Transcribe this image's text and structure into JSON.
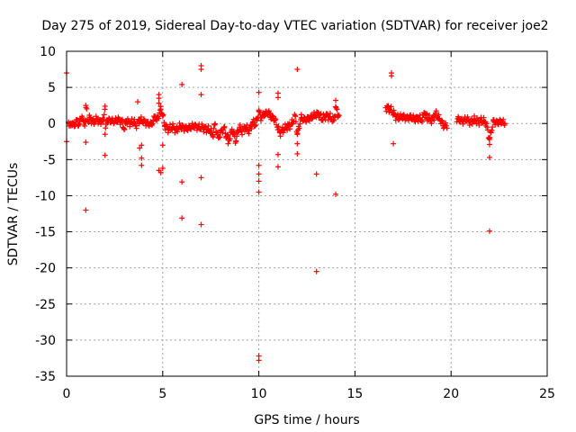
{
  "chart_data": {
    "type": "scatter",
    "title": "Day 275 of 2019, Sidereal Day-to-day VTEC variation (SDTVAR) for receiver joe2",
    "xlabel": "GPS time / hours",
    "ylabel": "SDTVAR / TECUs",
    "xlim": [
      0,
      25
    ],
    "ylim": [
      -35,
      10
    ],
    "xticks": [
      0,
      5,
      10,
      15,
      20,
      25
    ],
    "yticks": [
      10,
      5,
      0,
      -5,
      -10,
      -15,
      -20,
      -25,
      -30,
      -35
    ],
    "xtick_labels": [
      "0",
      "5",
      "10",
      "15",
      "20",
      "25"
    ],
    "ytick_labels": [
      "10",
      "5",
      "0",
      "-5",
      "-10",
      "-15",
      "-20",
      "-25",
      "-30",
      "-35"
    ],
    "grid": true,
    "marker": "plus",
    "color": "#ff0000",
    "series": [
      {
        "name": "joe2",
        "points": [
          [
            0.0,
            7.0
          ],
          [
            0.0,
            -2.5
          ],
          [
            0.1,
            0.2
          ],
          [
            0.2,
            -0.3
          ],
          [
            0.3,
            0.1
          ],
          [
            0.4,
            -0.4
          ],
          [
            0.5,
            0.5
          ],
          [
            0.6,
            -0.2
          ],
          [
            0.7,
            0.3
          ],
          [
            0.8,
            1.0
          ],
          [
            0.9,
            -0.1
          ],
          [
            1.0,
            0.4
          ],
          [
            1.0,
            2.5
          ],
          [
            1.0,
            -2.6
          ],
          [
            1.0,
            -12.0
          ],
          [
            1.1,
            0.3
          ],
          [
            1.2,
            0.8
          ],
          [
            1.3,
            0.5
          ],
          [
            1.4,
            0.2
          ],
          [
            1.5,
            0.4
          ],
          [
            1.6,
            0.6
          ],
          [
            1.7,
            0.2
          ],
          [
            1.8,
            0.4
          ],
          [
            1.9,
            0.3
          ],
          [
            2.0,
            2.4
          ],
          [
            2.0,
            -1.5
          ],
          [
            2.0,
            -4.4
          ],
          [
            2.1,
            0.5
          ],
          [
            2.3,
            0.4
          ],
          [
            2.5,
            0.3
          ],
          [
            2.7,
            0.5
          ],
          [
            2.9,
            0.2
          ],
          [
            3.0,
            -0.8
          ],
          [
            3.1,
            0.4
          ],
          [
            3.3,
            0.1
          ],
          [
            3.5,
            0.2
          ],
          [
            3.6,
            -0.3
          ],
          [
            3.7,
            3.0
          ],
          [
            3.8,
            0.5
          ],
          [
            3.8,
            -3.4
          ],
          [
            3.9,
            -3.0
          ],
          [
            3.9,
            -4.8
          ],
          [
            3.9,
            -5.8
          ],
          [
            4.0,
            0.3
          ],
          [
            4.2,
            0.0
          ],
          [
            4.4,
            -0.1
          ],
          [
            4.5,
            0.3
          ],
          [
            4.6,
            1.0
          ],
          [
            4.7,
            0.5
          ],
          [
            4.8,
            4.0
          ],
          [
            4.8,
            3.5
          ],
          [
            4.8,
            2.8
          ],
          [
            4.8,
            -6.5
          ],
          [
            4.9,
            2.0
          ],
          [
            4.9,
            -6.8
          ],
          [
            5.0,
            1.2
          ],
          [
            5.0,
            -6.2
          ],
          [
            5.0,
            -3.0
          ],
          [
            5.1,
            -0.3
          ],
          [
            5.3,
            -0.8
          ],
          [
            5.5,
            -0.5
          ],
          [
            5.7,
            -0.9
          ],
          [
            5.9,
            -0.4
          ],
          [
            6.0,
            5.4
          ],
          [
            6.0,
            -8.1
          ],
          [
            6.0,
            -13.1
          ],
          [
            6.2,
            -0.7
          ],
          [
            6.4,
            -0.6
          ],
          [
            6.6,
            -0.3
          ],
          [
            6.8,
            -0.5
          ],
          [
            7.0,
            8.0
          ],
          [
            7.0,
            7.5
          ],
          [
            7.0,
            4.0
          ],
          [
            7.0,
            -7.5
          ],
          [
            7.0,
            -14.0
          ],
          [
            7.1,
            -0.6
          ],
          [
            7.3,
            -0.8
          ],
          [
            7.5,
            -1.0
          ],
          [
            7.6,
            -1.7
          ],
          [
            7.7,
            -0.2
          ],
          [
            7.9,
            -2.0
          ],
          [
            8.0,
            -1.3
          ],
          [
            8.2,
            -0.6
          ],
          [
            8.3,
            -1.8
          ],
          [
            8.4,
            -2.8
          ],
          [
            8.5,
            -2.1
          ],
          [
            8.6,
            -0.8
          ],
          [
            8.7,
            -1.5
          ],
          [
            8.8,
            -2.5
          ],
          [
            8.9,
            -1.2
          ],
          [
            9.0,
            -0.5
          ],
          [
            9.1,
            -1.1
          ],
          [
            9.3,
            -0.6
          ],
          [
            9.5,
            -1.0
          ],
          [
            9.6,
            -0.3
          ],
          [
            9.7,
            0.2
          ],
          [
            9.8,
            -0.2
          ],
          [
            9.9,
            0.4
          ],
          [
            10.0,
            4.3
          ],
          [
            10.0,
            1.7
          ],
          [
            10.0,
            -5.8
          ],
          [
            10.0,
            -7.0
          ],
          [
            10.0,
            -8.0
          ],
          [
            10.0,
            -9.5
          ],
          [
            10.0,
            -32.2
          ],
          [
            10.0,
            -32.8
          ],
          [
            10.1,
            0.8
          ],
          [
            10.3,
            1.3
          ],
          [
            10.5,
            1.6
          ],
          [
            10.6,
            1.0
          ],
          [
            10.8,
            0.7
          ],
          [
            11.0,
            4.2
          ],
          [
            11.0,
            3.6
          ],
          [
            11.0,
            -4.3
          ],
          [
            11.0,
            -6.0
          ],
          [
            11.1,
            -1.3
          ],
          [
            11.3,
            -0.8
          ],
          [
            11.5,
            -0.4
          ],
          [
            11.7,
            -0.1
          ],
          [
            11.9,
            1.0
          ],
          [
            12.0,
            7.5
          ],
          [
            12.0,
            -1.5
          ],
          [
            12.0,
            -4.2
          ],
          [
            12.0,
            -2.8
          ],
          [
            12.2,
            0.8
          ],
          [
            12.4,
            0.5
          ],
          [
            12.6,
            0.7
          ],
          [
            12.8,
            1.0
          ],
          [
            13.0,
            -7.0
          ],
          [
            13.0,
            -20.5
          ],
          [
            13.1,
            1.4
          ],
          [
            13.3,
            0.6
          ],
          [
            13.5,
            1.1
          ],
          [
            13.7,
            0.9
          ],
          [
            13.9,
            0.4
          ],
          [
            14.0,
            3.2
          ],
          [
            14.0,
            2.3
          ],
          [
            14.0,
            -9.8
          ],
          [
            14.1,
            1.2
          ],
          [
            16.7,
            2.2
          ],
          [
            16.8,
            2.0
          ],
          [
            16.9,
            7.0
          ],
          [
            16.9,
            6.6
          ],
          [
            17.0,
            1.5
          ],
          [
            17.0,
            -2.8
          ],
          [
            17.1,
            1.0
          ],
          [
            17.3,
            0.8
          ],
          [
            17.5,
            1.0
          ],
          [
            17.7,
            0.7
          ],
          [
            17.9,
            0.9
          ],
          [
            18.1,
            0.6
          ],
          [
            18.3,
            0.8
          ],
          [
            18.5,
            0.5
          ],
          [
            18.6,
            1.5
          ],
          [
            18.8,
            0.7
          ],
          [
            19.0,
            0.4
          ],
          [
            19.2,
            1.4
          ],
          [
            19.4,
            0.6
          ],
          [
            19.5,
            0.3
          ],
          [
            19.6,
            -0.3
          ],
          [
            20.4,
            0.6
          ],
          [
            20.6,
            0.3
          ],
          [
            20.8,
            0.6
          ],
          [
            21.0,
            0.2
          ],
          [
            21.2,
            0.5
          ],
          [
            21.4,
            0.3
          ],
          [
            21.6,
            0.4
          ],
          [
            21.8,
            0.2
          ],
          [
            22.0,
            -2.2
          ],
          [
            22.0,
            -2.9
          ],
          [
            22.0,
            -4.7
          ],
          [
            22.0,
            -14.9
          ],
          [
            22.2,
            0.3
          ],
          [
            22.4,
            0.1
          ],
          [
            22.6,
            0.3
          ],
          [
            22.8,
            0.0
          ]
        ],
        "dense_segments": [
          {
            "t0": 0.1,
            "t1": 14.2,
            "note": "continuous dense data near zero"
          },
          {
            "t0": 16.6,
            "t1": 19.8,
            "note": "continuous dense data"
          },
          {
            "t0": 20.3,
            "t1": 22.8,
            "note": "continuous dense data"
          }
        ]
      }
    ]
  }
}
